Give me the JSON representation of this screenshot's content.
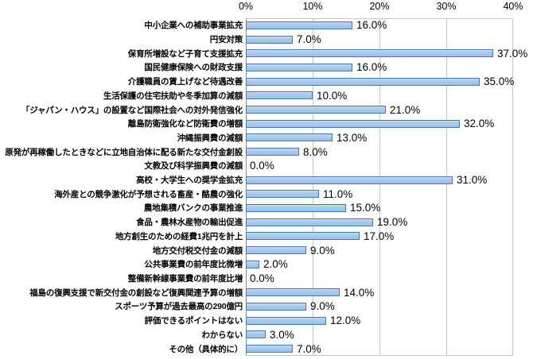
{
  "chart_data": {
    "type": "bar",
    "orientation": "horizontal",
    "categories": [
      "中小企業への補助事業拡充",
      "円安対策",
      "保育所増設など子育て支援拡充",
      "国民健康保険への財政支援",
      "介護職員の賃上げなど待遇改善",
      "生活保護の住宅扶助や冬季加算の減額",
      "「ジャパン・ハウス」の設置など国際社会への対外発信強化",
      "離島防衛強化など防衛費の増額",
      "沖縄振興費の減額",
      "原発が再稼働したときなどに立地自治体に配る新たな交付金創設",
      "文教及び科学振興費の減額",
      "高校・大学生への奨学金拡充",
      "海外産との競争激化が予想される畜産・酪農の強化",
      "農地集積バンクの事業推進",
      "食品・農林水産物の輸出促進",
      "地方創生のための経費1兆円を計上",
      "地方交付税交付金の減額",
      "公共事業費の前年度比微増",
      "整備新幹線事業費の前年度比増",
      "福島の復興支援で新交付金の創設など復興関連予算の増額",
      "スポーツ予算が過去最高の290億円",
      "評価できるポイントはない",
      "わからない",
      "その他（具体的に）"
    ],
    "values": [
      16,
      7,
      37,
      16,
      35,
      10,
      21,
      32,
      13,
      8,
      0,
      31,
      11,
      15,
      19,
      17,
      9,
      2,
      0,
      14,
      9,
      12,
      3,
      7
    ],
    "data_labels": [
      "16.0%",
      "7.0%",
      "37.0%",
      "16.0%",
      "35.0%",
      "10.0%",
      "21.0%",
      "32.0%",
      "13.0%",
      "8.0%",
      "0.0%",
      "31.0%",
      "11.0%",
      "15.0%",
      "19.0%",
      "17.0%",
      "9.0%",
      "2.0%",
      "0.0%",
      "14.0%",
      "9.0%",
      "12.0%",
      "3.0%",
      "7.0%"
    ],
    "xlim": [
      0,
      40
    ],
    "x_ticks": [
      "0%",
      "10%",
      "20%",
      "30%",
      "40%"
    ],
    "grid": "vertical-gridlines",
    "legend": "none",
    "colors": {
      "bar_fill": "#A9CCEC",
      "bar_border": "#4777AE",
      "gridline": "#C6C6C6",
      "axis_line": "#8C8C8C",
      "text": "#000000",
      "background": "#FFFFFF"
    }
  }
}
